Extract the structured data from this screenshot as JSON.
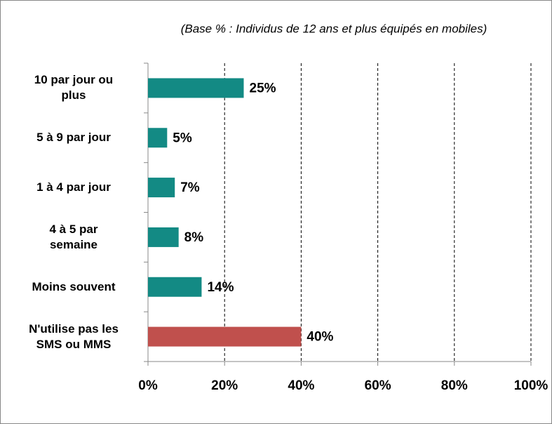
{
  "chart_data": {
    "type": "bar",
    "orientation": "horizontal",
    "subtitle": "(Base % : Individus de 12 ans et plus équipés en mobiles)",
    "categories": [
      "10 par jour ou\nplus",
      "5 à  9 par jour",
      "1 à 4 par jour",
      "4 à 5 par\nsemaine",
      "Moins souvent",
      "N'utilise pas les\nSMS ou MMS"
    ],
    "values": [
      25,
      5,
      7,
      8,
      14,
      40
    ],
    "value_labels": [
      "25%",
      "5%",
      "7%",
      "8%",
      "14%",
      "40%"
    ],
    "colors": [
      "#138a84",
      "#138a84",
      "#138a84",
      "#138a84",
      "#138a84",
      "#c0504d"
    ],
    "xlim": [
      0,
      100
    ],
    "xticks": [
      {
        "value": 0,
        "label": "0%"
      },
      {
        "value": 20,
        "label": "20%"
      },
      {
        "value": 40,
        "label": "40%"
      },
      {
        "value": 60,
        "label": "60%"
      },
      {
        "value": 80,
        "label": "80%"
      },
      {
        "value": 100,
        "label": "100%"
      }
    ],
    "grid": true
  }
}
